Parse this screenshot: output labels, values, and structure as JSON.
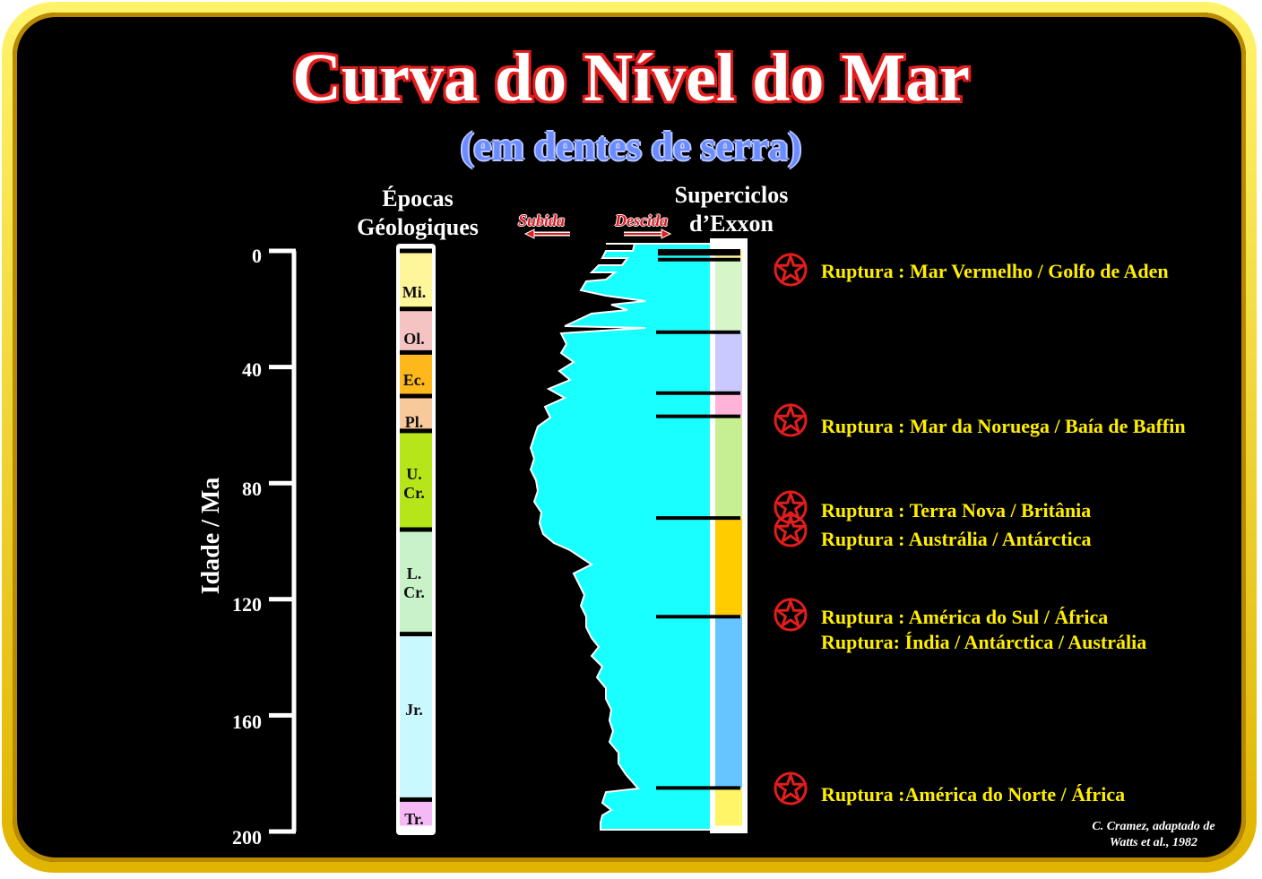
{
  "title": "Curva do Nível do Mar",
  "subtitle": "(em dentes de serra)",
  "headers": {
    "epochs_line1": "Épocas",
    "epochs_line2": "Géologiques",
    "supercycles_line1": "Superciclos",
    "supercycles_line2": "d’Exxon"
  },
  "direction": {
    "rise": "Subida",
    "fall": "Descida"
  },
  "axis": {
    "label": "Idade / Ma",
    "ticks": [
      "0",
      "40",
      "80",
      "120",
      "160",
      "200"
    ]
  },
  "epochs": [
    {
      "label": "Mi.",
      "from": 0,
      "to": 20,
      "color": "#fff59a"
    },
    {
      "label": "Ol.",
      "from": 20,
      "to": 35,
      "color": "#f6c3c3"
    },
    {
      "label": "Ec.",
      "from": 35,
      "to": 50,
      "color": "#ffb81c"
    },
    {
      "label": "Pl.",
      "from": 50,
      "to": 62,
      "color": "#f8c99a"
    },
    {
      "label": "U. Cr.",
      "from": 62,
      "to": 96,
      "color": "#b6e51a"
    },
    {
      "label": "L. Cr.",
      "from": 96,
      "to": 132,
      "color": "#c9f2c9"
    },
    {
      "label": "Jr.",
      "from": 132,
      "to": 189,
      "color": "#c9f8ff"
    },
    {
      "label": "Tr.",
      "from": 189,
      "to": 198,
      "color": "#f5b9f5"
    }
  ],
  "supercycles": [
    {
      "from": 0,
      "to": 3,
      "color": "#fff59a"
    },
    {
      "from": 3,
      "to": 28,
      "color": "#d6f5c9"
    },
    {
      "from": 28,
      "to": 49,
      "color": "#c9c9ff"
    },
    {
      "from": 49,
      "to": 57,
      "color": "#ffb3d9"
    },
    {
      "from": 57,
      "to": 92,
      "color": "#c6f08f"
    },
    {
      "from": 92,
      "to": 126,
      "color": "#ffcc00"
    },
    {
      "from": 126,
      "to": 185,
      "color": "#66c5ff"
    },
    {
      "from": 185,
      "to": 198,
      "color": "#fff566"
    }
  ],
  "boundaries": [
    0,
    1,
    3,
    28,
    49,
    57,
    92,
    126,
    185
  ],
  "events": [
    {
      "text": "Ruptura : Mar Vermelho / Golfo de Aden"
    },
    {
      "text": "Ruptura : Mar da Noruega / Baía de Baffin"
    },
    {
      "text": "Ruptura : Terra Nova / Britânia"
    },
    {
      "text": "Ruptura : Austrália / Antárctica"
    },
    {
      "text": "Ruptura : América do Sul / África"
    },
    {
      "text": "Ruptura:  Índia / Antárctica / Austrália"
    },
    {
      "text": "Ruptura :América do Norte / África"
    }
  ],
  "credit_line1": "C. Cramez, adaptado de",
  "credit_line2": "Watts et al., 1982",
  "colors": {
    "curve": "#19ffff",
    "accent_red": "#e21d1d",
    "event_text": "#ffee00"
  }
}
